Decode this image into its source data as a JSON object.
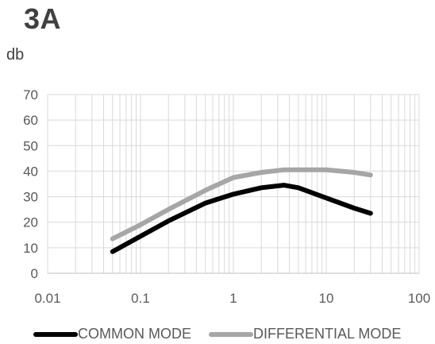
{
  "chart_data": {
    "type": "line",
    "title": "3A",
    "ylabel": "db",
    "xlabel": "",
    "x_scale": "log",
    "xlim": [
      0.01,
      100
    ],
    "ylim": [
      0,
      70
    ],
    "x_ticks": [
      0.01,
      0.1,
      1,
      10,
      100
    ],
    "x_tick_labels": [
      "0.01",
      "0.1",
      "1",
      "10",
      "100"
    ],
    "y_ticks": [
      0,
      10,
      20,
      30,
      40,
      50,
      60,
      70
    ],
    "y_tick_labels": [
      "0",
      "10",
      "20",
      "30",
      "40",
      "50",
      "60",
      "70"
    ],
    "grid": true,
    "legend_position": "bottom",
    "series": [
      {
        "name": "COMMON MODE",
        "color": "#000000",
        "x": [
          0.05,
          0.1,
          0.2,
          0.5,
          1,
          2,
          3.5,
          5,
          10,
          20,
          30
        ],
        "y": [
          8.5,
          14.5,
          20.5,
          27.5,
          31,
          33.5,
          34.5,
          33.5,
          29.5,
          25.5,
          23.5
        ]
      },
      {
        "name": "DIFFERENTIAL MODE",
        "color": "#a6a6a6",
        "x": [
          0.05,
          0.1,
          0.2,
          0.5,
          1,
          2,
          3.5,
          5,
          10,
          20,
          30
        ],
        "y": [
          13.5,
          19,
          25,
          32.5,
          37.5,
          39.5,
          40.5,
          40.5,
          40.5,
          39.5,
          38.5
        ]
      }
    ]
  }
}
